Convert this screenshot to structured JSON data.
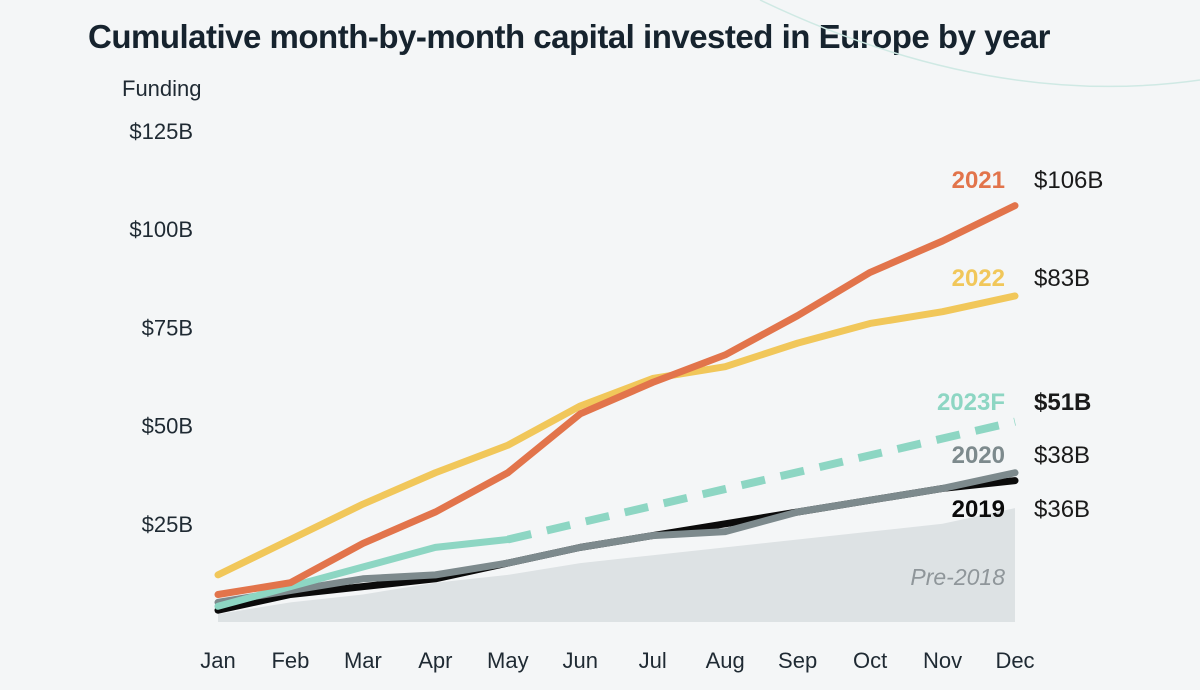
{
  "title": "Cumulative month-by-month capital invested in Europe by year",
  "chart_data": {
    "type": "line",
    "title": "Cumulative month-by-month capital invested in Europe by year",
    "ylabel": "Funding",
    "xlabel": "",
    "ylim": [
      0,
      125
    ],
    "y_ticks": [
      {
        "value": 25,
        "label": "$25B"
      },
      {
        "value": 50,
        "label": "$50B"
      },
      {
        "value": 75,
        "label": "$75B"
      },
      {
        "value": 100,
        "label": "$100B"
      },
      {
        "value": 125,
        "label": "$125B"
      }
    ],
    "categories": [
      "Jan",
      "Feb",
      "Mar",
      "Apr",
      "May",
      "Jun",
      "Jul",
      "Aug",
      "Sep",
      "Oct",
      "Nov",
      "Dec"
    ],
    "grid": false,
    "series": [
      {
        "name": "Pre-2018",
        "style": "area",
        "color": "#dde2e4",
        "values": [
          2,
          5,
          7,
          10,
          12,
          15,
          17,
          19,
          21,
          23,
          25,
          29
        ],
        "end_label": ""
      },
      {
        "name": "2019",
        "style": "line",
        "color": "#0b0b0b",
        "values": [
          3,
          7,
          9,
          11,
          15,
          19,
          22,
          25,
          28,
          31,
          34,
          36
        ],
        "end_label": "$36B",
        "end_label_bold": false
      },
      {
        "name": "2020",
        "style": "line",
        "color": "#7d8a8d",
        "values": [
          5,
          8,
          11,
          12,
          15,
          19,
          22,
          23,
          28,
          31,
          34,
          38
        ],
        "end_label": "$38B",
        "end_label_bold": false
      },
      {
        "name": "2023F",
        "style": "dashed",
        "color": "#8dd6c3",
        "values": [
          4,
          9,
          14,
          19,
          21,
          null,
          null,
          null,
          null,
          null,
          null,
          51
        ],
        "dashed_from_index": 4,
        "end_label": "$51B",
        "end_label_bold": true
      },
      {
        "name": "2022",
        "style": "line",
        "color": "#f1c75a",
        "values": [
          12,
          21,
          30,
          38,
          45,
          55,
          62,
          65,
          71,
          76,
          79,
          83
        ],
        "end_label": "$83B",
        "end_label_bold": false
      },
      {
        "name": "2021",
        "style": "line",
        "color": "#e2744b",
        "values": [
          7,
          10,
          20,
          28,
          38,
          53,
          61,
          68,
          78,
          89,
          97,
          106
        ],
        "end_label": "$106B",
        "end_label_bold": false
      }
    ],
    "legend": "inline-right"
  }
}
